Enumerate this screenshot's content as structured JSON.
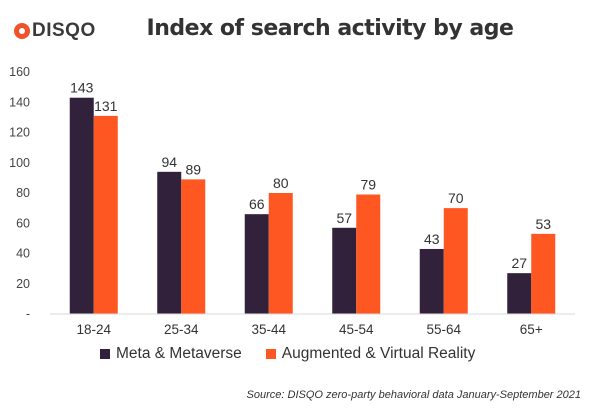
{
  "brand": {
    "logo_text": "DISQO",
    "logo_color": "#f0522b"
  },
  "title": "Index of search activity by age",
  "source": "Source: DISQO zero-party behavioral data January-September 2021",
  "chart_data": {
    "type": "bar",
    "title": "Index of search activity by age",
    "xlabel": "",
    "ylabel": "",
    "ylim": [
      0,
      160
    ],
    "yticks": [
      "-",
      "20",
      "40",
      "60",
      "80",
      "100",
      "120",
      "140",
      "160"
    ],
    "grid": false,
    "legend_position": "bottom",
    "categories": [
      "18-24",
      "25-34",
      "35-44",
      "45-54",
      "55-64",
      "65+"
    ],
    "series": [
      {
        "name": "Meta & Metaverse",
        "color": "#32213a",
        "values": [
          143,
          94,
          66,
          57,
          43,
          27
        ]
      },
      {
        "name": "Augmented & Virtual Reality",
        "color": "#fe5722",
        "values": [
          131,
          89,
          80,
          79,
          70,
          53
        ]
      }
    ]
  }
}
